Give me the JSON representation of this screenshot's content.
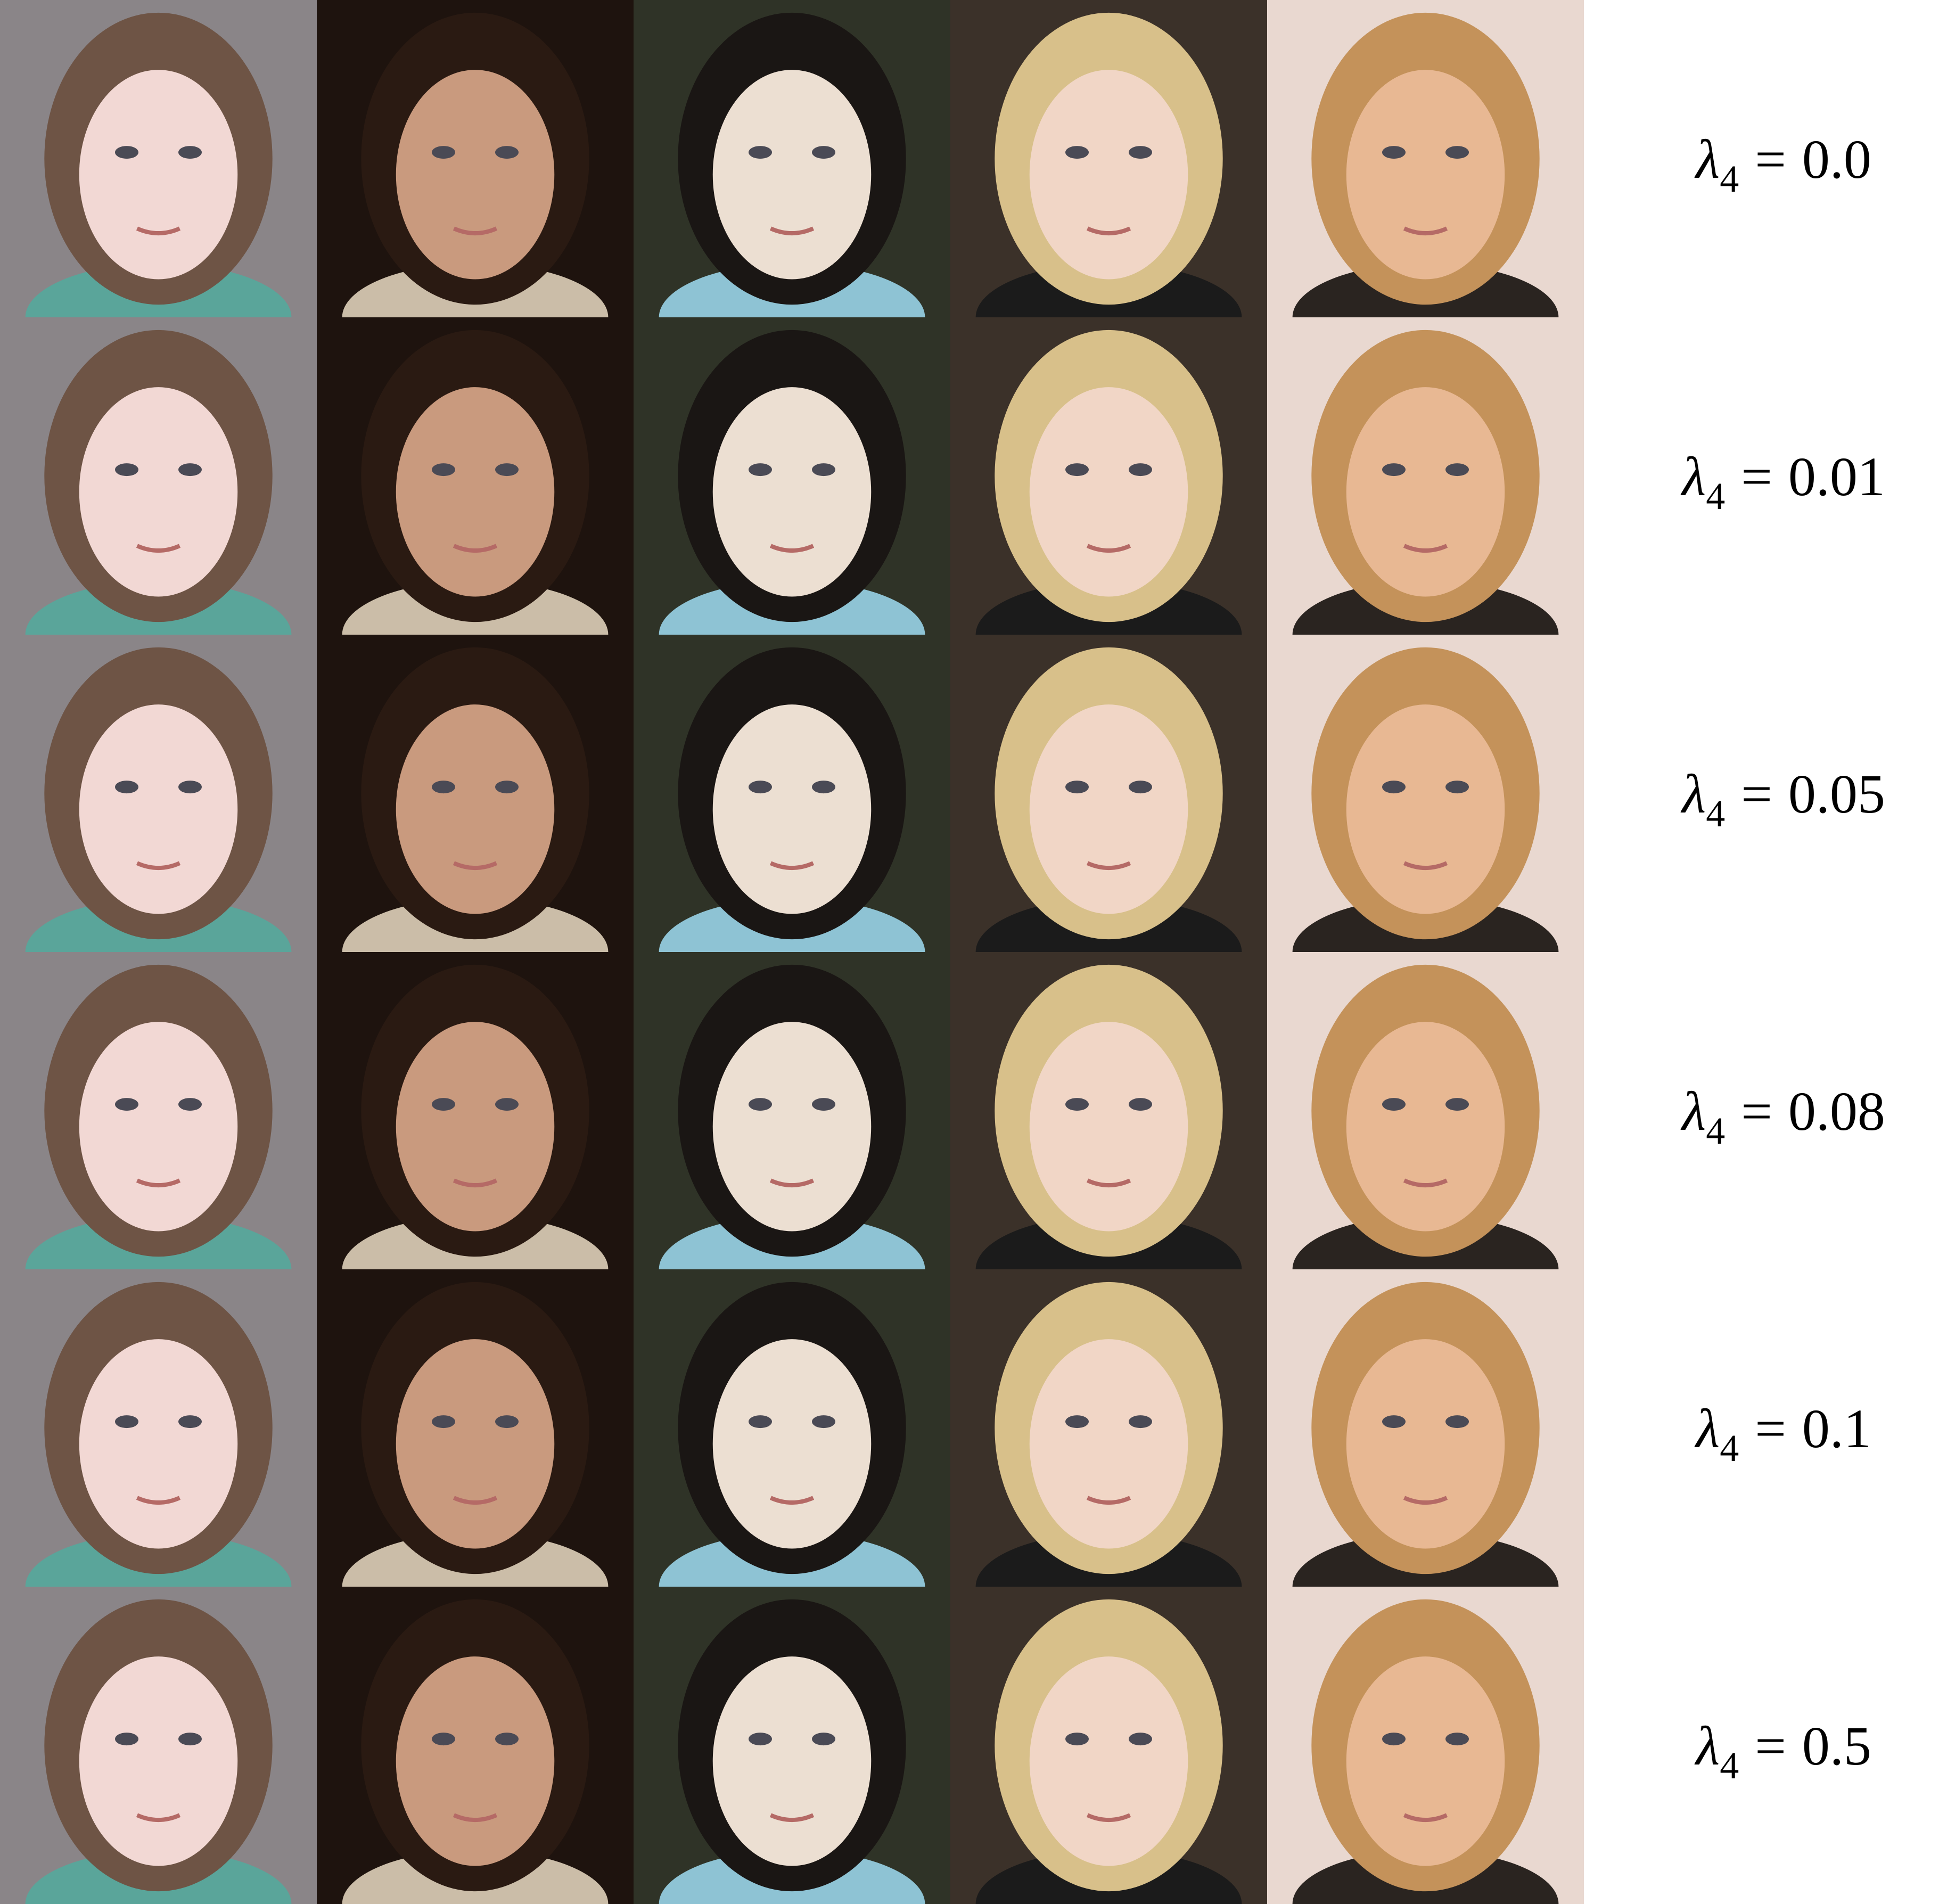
{
  "figure": {
    "rows": [
      {
        "symbol": "λ",
        "index": "4",
        "relation": "=",
        "value": "0.0"
      },
      {
        "symbol": "λ",
        "index": "4",
        "relation": "=",
        "value": "0.01"
      },
      {
        "symbol": "λ",
        "index": "4",
        "relation": "=",
        "value": "0.05"
      },
      {
        "symbol": "λ",
        "index": "4",
        "relation": "=",
        "value": "0.08"
      },
      {
        "symbol": "λ",
        "index": "4",
        "relation": "=",
        "value": "0.1"
      },
      {
        "symbol": "λ",
        "index": "4",
        "relation": "=",
        "value": "0.5"
      }
    ]
  }
}
